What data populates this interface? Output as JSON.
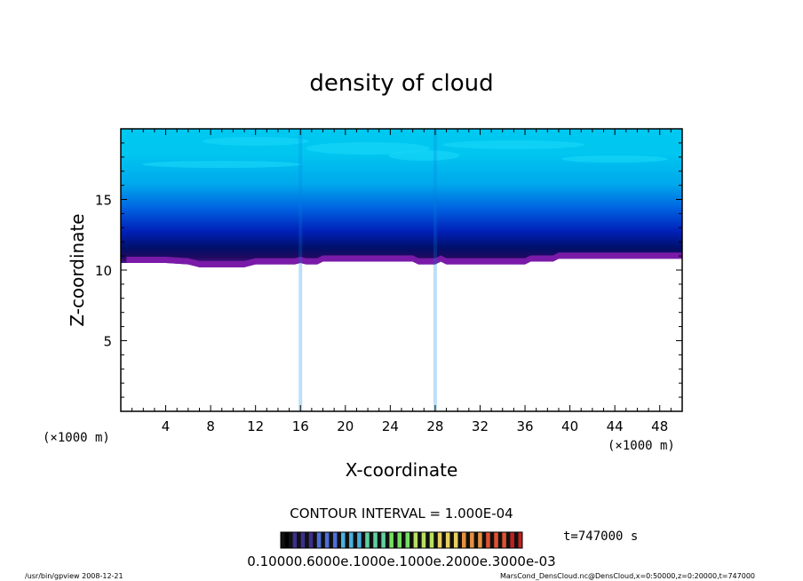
{
  "chart_data": {
    "type": "heatmap",
    "title": "density of cloud",
    "xlabel": "X-coordinate",
    "ylabel": "Z-coordinate",
    "x_unit": "(×1000 m)",
    "z_unit": "(×1000 m)",
    "xlim": [
      0,
      50
    ],
    "ylim": [
      0,
      20
    ],
    "x_ticks": [
      "4",
      "8",
      "12",
      "16",
      "20",
      "24",
      "28",
      "32",
      "36",
      "40",
      "44",
      "48"
    ],
    "y_ticks": [
      "5",
      "10",
      "15"
    ],
    "cloud_base_km": [
      [
        0.5,
        10.5
      ],
      [
        2.0,
        10.5
      ],
      [
        4.0,
        10.5
      ],
      [
        6.0,
        10.4
      ],
      [
        7.0,
        10.2
      ],
      [
        11.0,
        10.2
      ],
      [
        12.0,
        10.4
      ],
      [
        15.5,
        10.4
      ],
      [
        16.0,
        10.5
      ],
      [
        16.5,
        10.4
      ],
      [
        17.5,
        10.4
      ],
      [
        18.0,
        10.6
      ],
      [
        26.0,
        10.6
      ],
      [
        26.5,
        10.4
      ],
      [
        28.0,
        10.4
      ],
      [
        28.5,
        10.6
      ],
      [
        29.0,
        10.4
      ],
      [
        36.0,
        10.4
      ],
      [
        36.5,
        10.6
      ],
      [
        38.5,
        10.6
      ],
      [
        39.0,
        10.8
      ],
      [
        50.0,
        10.8
      ]
    ],
    "contour_interval_text": "CONTOUR INTERVAL = 1.000E-04",
    "colorbar_labels": "0.10000.6000e.1000e.1000e.2000e.3000e-03",
    "colorbar_colors": [
      "#000000",
      "#3b2f8f",
      "#4d6fd8",
      "#49b0e0",
      "#5fd0a0",
      "#74e060",
      "#b8e060",
      "#e8d060",
      "#e89040",
      "#e05030",
      "#c02020"
    ],
    "time_label": "t=747000 s",
    "footer_left": "/usr/bin/gpview   2008-12-21",
    "footer_right": "MarsCond_DensCloud.nc@DensCloud,x=0:50000,z=0:20000,t=747000"
  }
}
